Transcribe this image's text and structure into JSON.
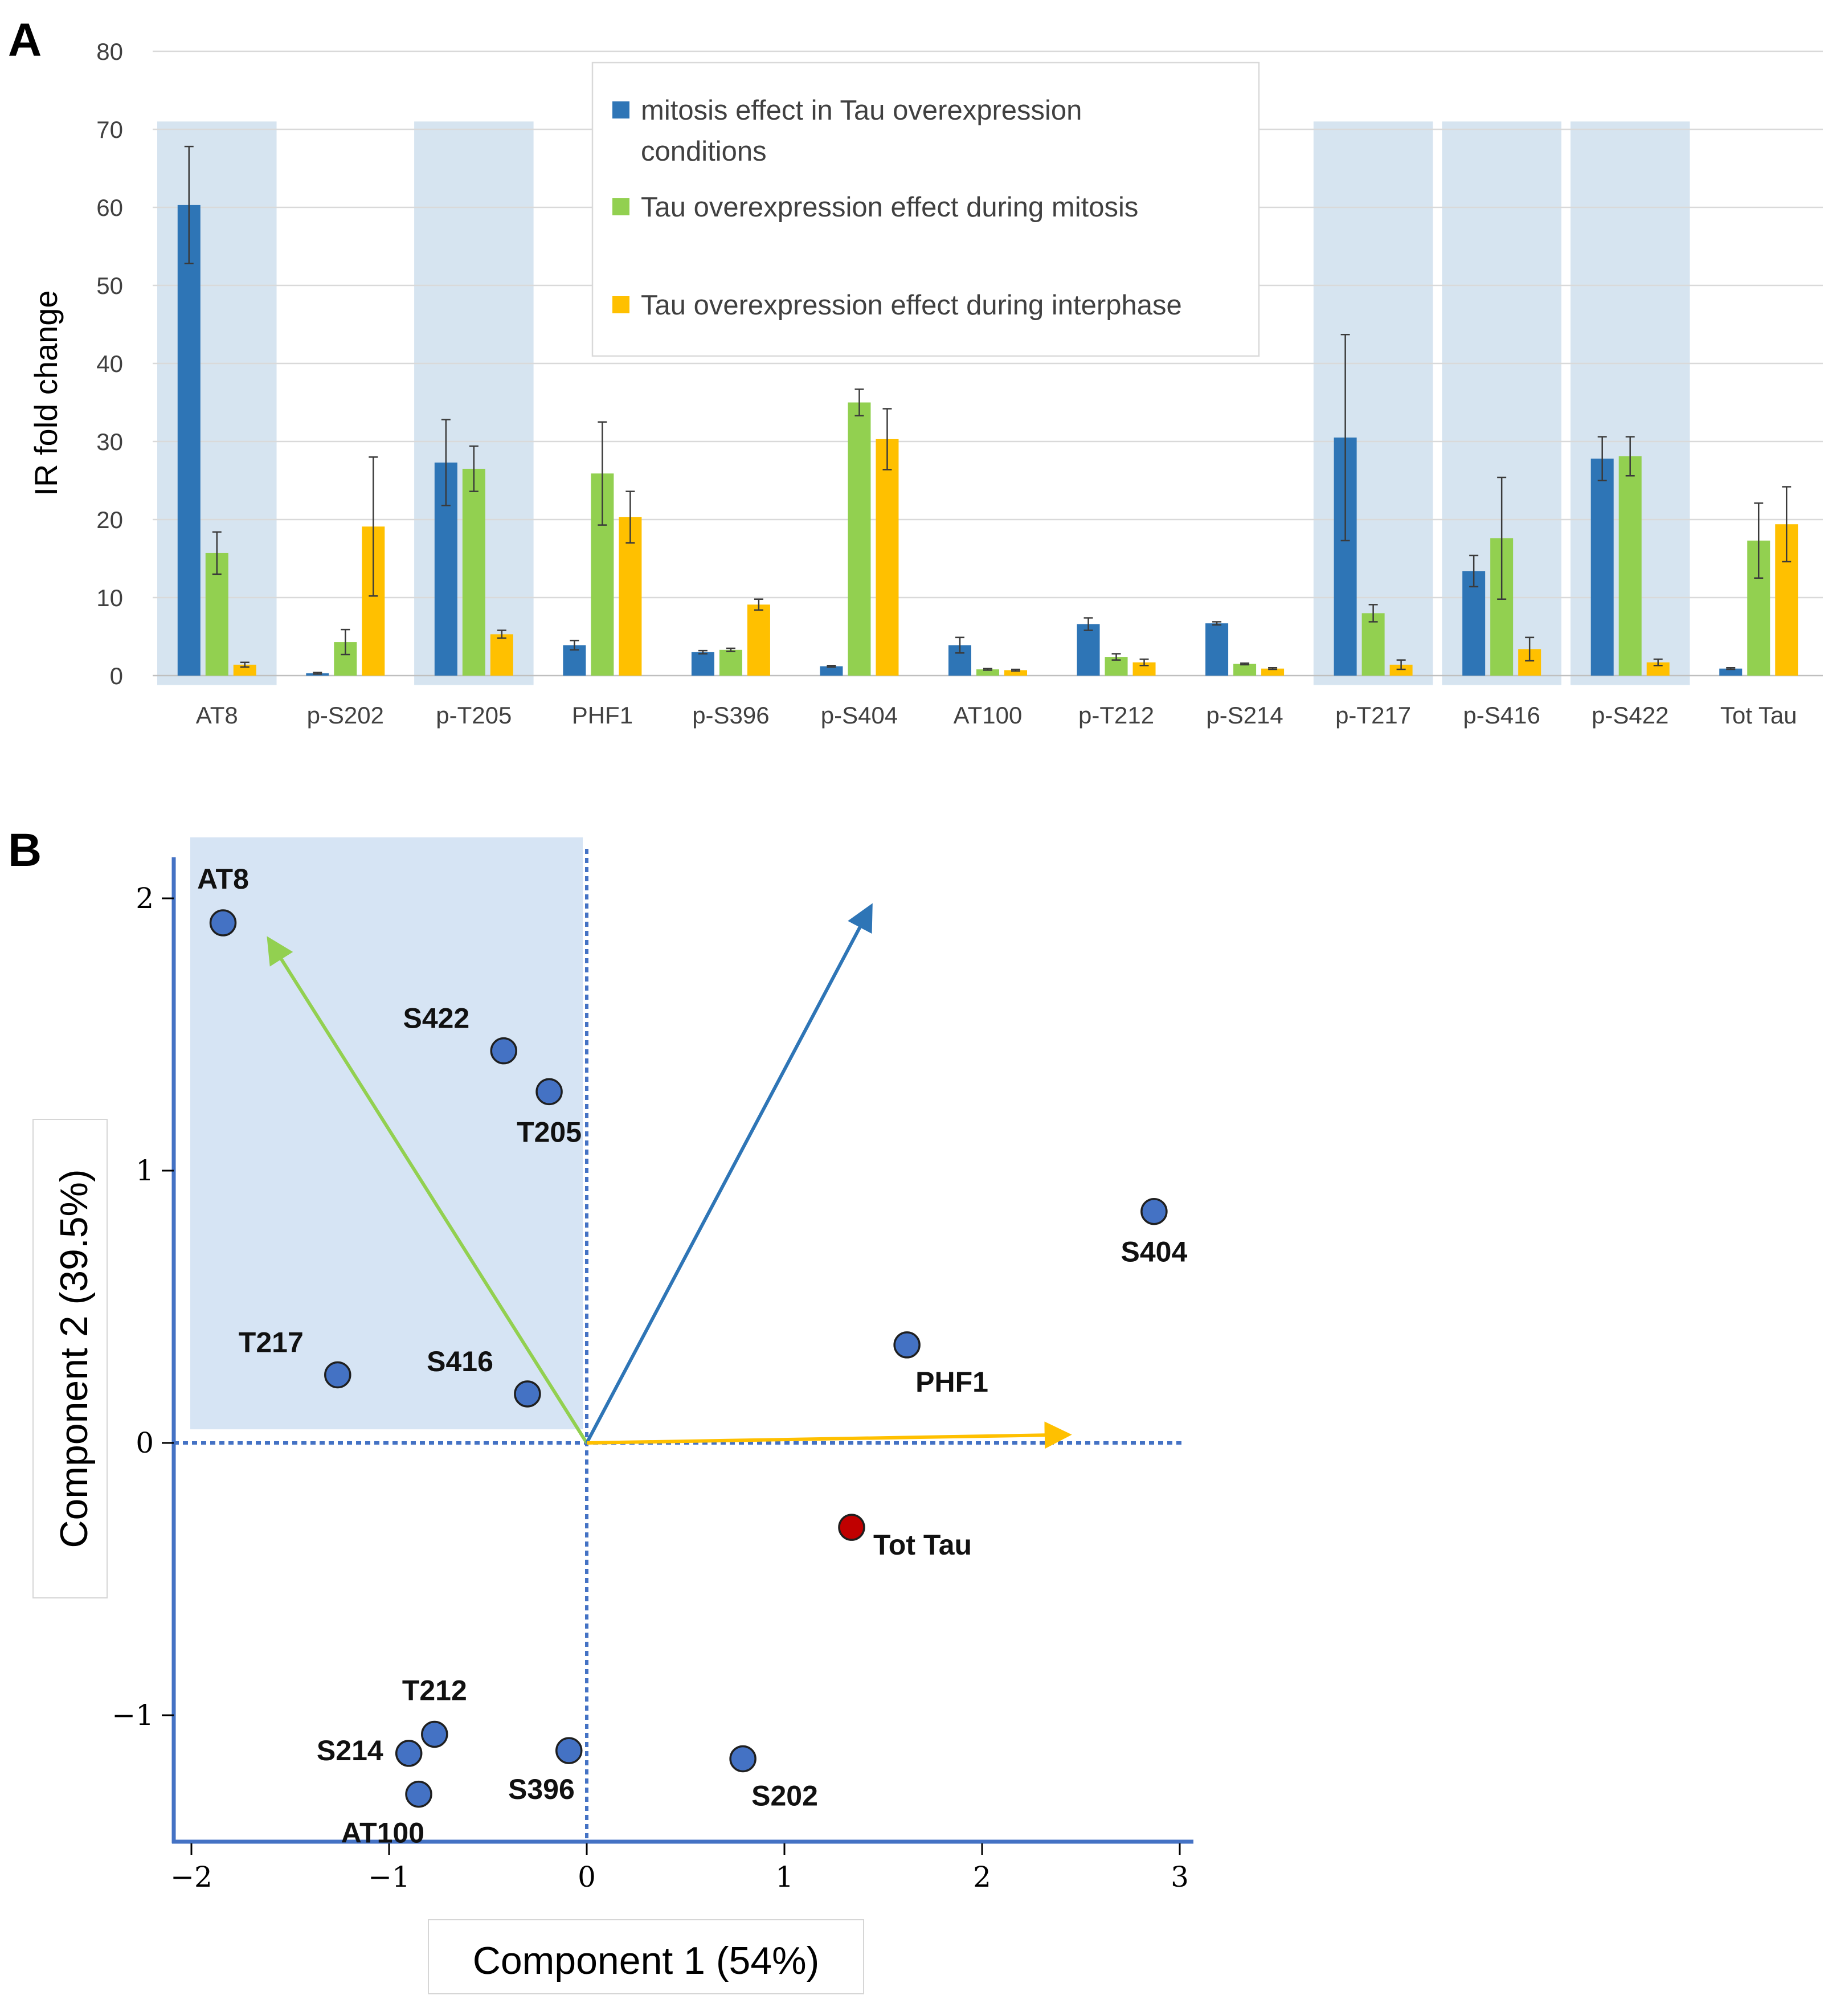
{
  "panelA": {
    "label": "A",
    "ylabel": "IR fold change",
    "yticks": [
      0,
      10,
      20,
      30,
      40,
      50,
      60,
      70,
      80
    ],
    "legend": [
      {
        "lines": [
          "mitosis effect in Tau overexpression",
          "conditions"
        ],
        "color": "#2E75B6"
      },
      {
        "lines": [
          "Tau overexpression effect during mitosis"
        ],
        "color": "#92D050"
      },
      {
        "lines": [
          "Tau overexpression effect during interphase"
        ],
        "color": "#FFC000"
      }
    ]
  },
  "panelB": {
    "label": "B",
    "xlabel": "Component 1 (54%)",
    "ylabel": "Component 2 (39.5%)",
    "xticks": [
      "−2",
      "−1",
      "0",
      "1",
      "2",
      "3"
    ],
    "yticks": [
      "−1",
      "0",
      "1",
      "2"
    ]
  },
  "chart_data": [
    {
      "type": "bar",
      "title": "",
      "xlabel": "",
      "ylabel": "IR fold change",
      "ylim": [
        0,
        80
      ],
      "categories": [
        "AT8",
        "p-S202",
        "p-T205",
        "PHF1",
        "p-S396",
        "p-S404",
        "AT100",
        "p-T212",
        "p-S214",
        "p-T217",
        "p-S416",
        "p-S422",
        "Tot Tau"
      ],
      "highlighted": [
        "AT8",
        "p-T205",
        "p-T217",
        "p-S416",
        "p-S422"
      ],
      "series": [
        {
          "name": "mitosis effect in Tau overexpression conditions",
          "color": "#2E75B6",
          "values": [
            60.3,
            0.3,
            27.3,
            3.9,
            3.0,
            1.2,
            3.9,
            6.6,
            6.7,
            30.5,
            13.4,
            27.8,
            0.9
          ],
          "errors": [
            7.5,
            0.1,
            5.5,
            0.6,
            0.2,
            0.1,
            1.0,
            0.8,
            0.2,
            13.2,
            2.0,
            2.8,
            0.1
          ]
        },
        {
          "name": "Tau overexpression effect during mitosis",
          "color": "#92D050",
          "values": [
            15.7,
            4.3,
            26.5,
            25.9,
            3.3,
            35.0,
            0.8,
            2.4,
            1.5,
            8.0,
            17.6,
            28.1,
            17.3
          ],
          "errors": [
            2.7,
            1.6,
            2.9,
            6.6,
            0.2,
            1.7,
            0.1,
            0.4,
            0.1,
            1.1,
            7.8,
            2.5,
            4.8
          ]
        },
        {
          "name": "Tau overexpression effect during interphase",
          "color": "#FFC000",
          "values": [
            1.4,
            19.1,
            5.3,
            20.3,
            9.1,
            30.3,
            0.7,
            1.7,
            0.9,
            1.4,
            3.4,
            1.7,
            19.4
          ],
          "errors": [
            0.3,
            8.9,
            0.5,
            3.3,
            0.7,
            3.9,
            0.1,
            0.4,
            0.1,
            0.6,
            1.5,
            0.4,
            4.8
          ]
        }
      ]
    },
    {
      "type": "scatter",
      "title": "",
      "xlabel": "Component 1 (54%)",
      "ylabel": "Component 2 (39.5%)",
      "xlim": [
        -2.1,
        3.1
      ],
      "ylim": [
        -1.47,
        2.12
      ],
      "highlight_region": {
        "x": [
          -2.0,
          -0.02
        ],
        "y": [
          0.05,
          2.2
        ]
      },
      "points": [
        {
          "label": "AT8",
          "x": -1.84,
          "y": 1.91,
          "color": "#4472C4",
          "label_pos": "above"
        },
        {
          "label": "S422",
          "x": -0.42,
          "y": 1.44,
          "color": "#4472C4",
          "label_pos": "upper-left"
        },
        {
          "label": "T205",
          "x": -0.19,
          "y": 1.29,
          "color": "#4472C4",
          "label_pos": "below"
        },
        {
          "label": "S404",
          "x": 2.87,
          "y": 0.85,
          "color": "#4472C4",
          "label_pos": "below"
        },
        {
          "label": "PHF1",
          "x": 1.62,
          "y": 0.36,
          "color": "#4472C4",
          "label_pos": "below-right"
        },
        {
          "label": "T217",
          "x": -1.26,
          "y": 0.25,
          "color": "#4472C4",
          "label_pos": "upper-left"
        },
        {
          "label": "S416",
          "x": -0.3,
          "y": 0.18,
          "color": "#4472C4",
          "label_pos": "upper-left"
        },
        {
          "label": "Tot Tau",
          "x": 1.34,
          "y": -0.31,
          "color": "#C00000",
          "label_pos": "right"
        },
        {
          "label": "T212",
          "x": -0.77,
          "y": -1.07,
          "color": "#4472C4",
          "label_pos": "above"
        },
        {
          "label": "S214",
          "x": -0.9,
          "y": -1.14,
          "color": "#4472C4",
          "label_pos": "left"
        },
        {
          "label": "S396",
          "x": -0.09,
          "y": -1.13,
          "color": "#4472C4",
          "label_pos": "below-left"
        },
        {
          "label": "S202",
          "x": 0.79,
          "y": -1.16,
          "color": "#4472C4",
          "label_pos": "below-right"
        },
        {
          "label": "AT100",
          "x": -0.85,
          "y": -1.29,
          "color": "#4472C4",
          "label_pos": "below-left"
        }
      ],
      "vectors": [
        {
          "color": "#92D050",
          "x": -1.6,
          "y": 1.84
        },
        {
          "color": "#2E75B6",
          "x": 1.43,
          "y": 1.96
        },
        {
          "color": "#FFC000",
          "x": 2.42,
          "y": 0.03
        }
      ]
    }
  ]
}
